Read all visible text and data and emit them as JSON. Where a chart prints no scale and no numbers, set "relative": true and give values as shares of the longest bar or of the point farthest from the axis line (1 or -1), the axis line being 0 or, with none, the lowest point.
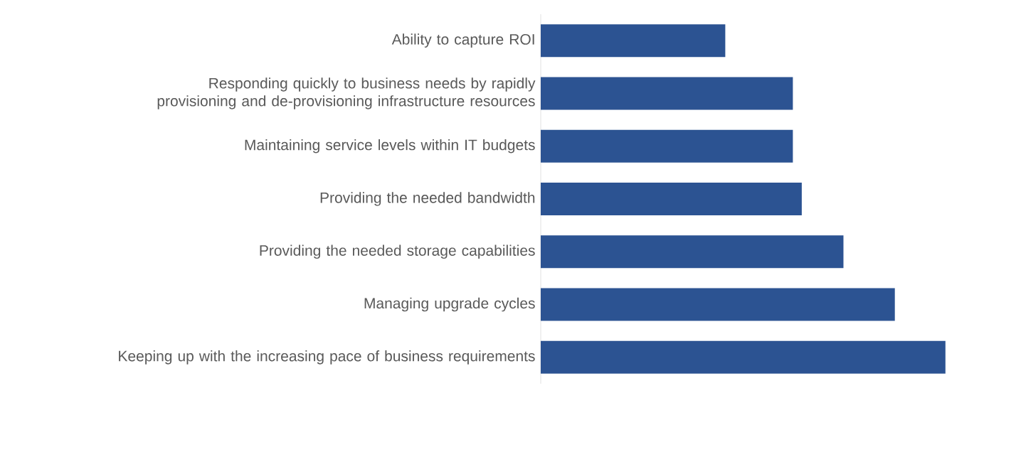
{
  "chart_data": {
    "type": "bar",
    "orientation": "horizontal",
    "relative": true,
    "color": "#2c5392",
    "categories": [
      "Ability to capture ROI",
      "Responding quickly to business needs by rapidly provisioning and de-provisioning infrastructure resources",
      "Maintaining service levels within IT budgets",
      "Providing the needed bandwidth",
      "Providing the needed storage capabilities",
      "Managing upgrade cycles",
      "Keeping up with the increasing pace of business requirements"
    ],
    "values": [
      0.456,
      0.623,
      0.623,
      0.645,
      0.748,
      0.875,
      1
    ]
  }
}
